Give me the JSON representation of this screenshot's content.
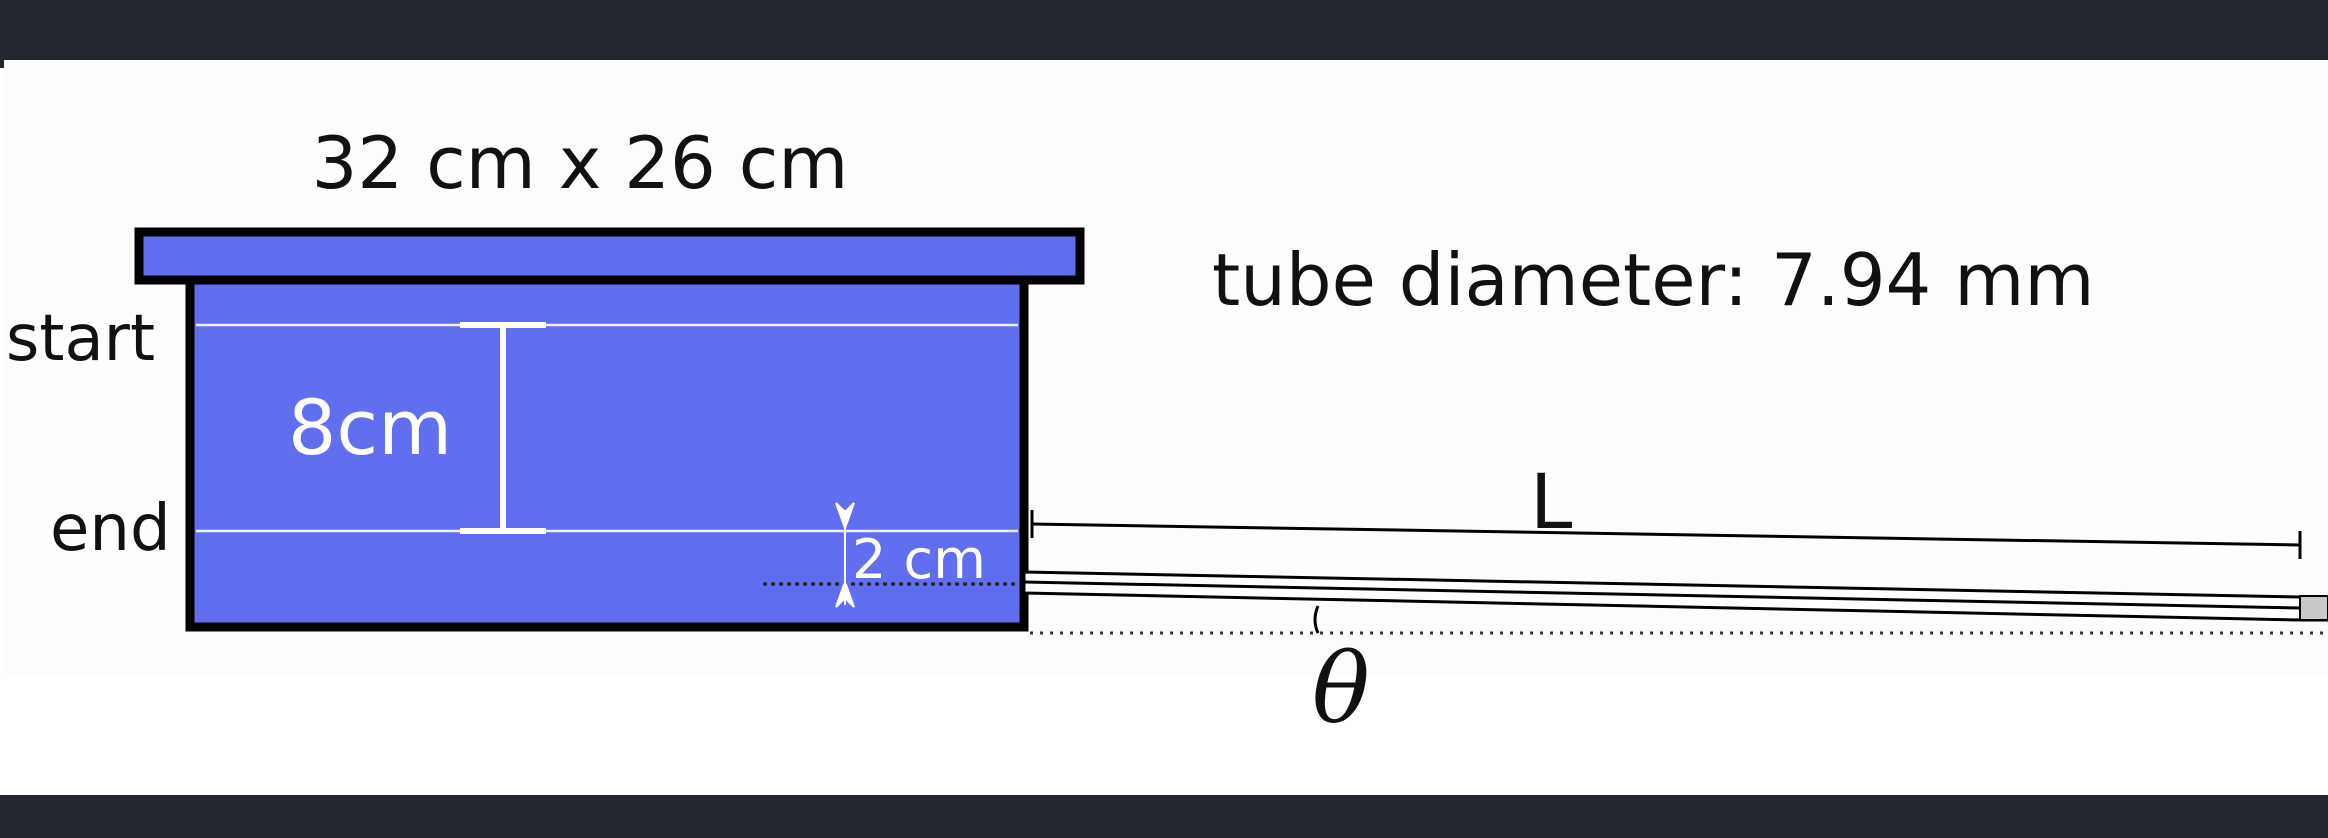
{
  "diagram": {
    "tank_size_label": "32 cm x 26 cm",
    "tube_diameter_label": "tube diameter: 7.94 mm",
    "start_label": "start",
    "end_label": "end",
    "drop_label": "8cm",
    "offset_label": "2 cm",
    "length_label": "L",
    "angle_label": "θ",
    "colors": {
      "water": "#5f6fef",
      "outline": "#000000",
      "frame": "#232830",
      "guide_lines": "#ffffff"
    }
  }
}
